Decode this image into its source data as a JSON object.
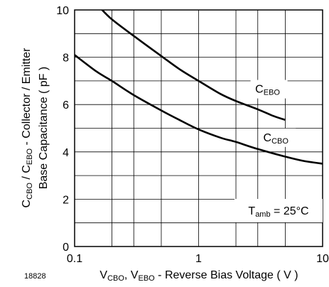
{
  "chart_data": {
    "type": "line",
    "title": "",
    "xscale": "log",
    "xlim": [
      0.1,
      10
    ],
    "ylim": [
      0,
      10
    ],
    "grid": true,
    "x_ticks": [
      {
        "value": 0.1,
        "label": "0.1"
      },
      {
        "value": 1,
        "label": "1"
      },
      {
        "value": 10,
        "label": "10"
      }
    ],
    "y_ticks": [
      {
        "value": 0,
        "label": "0"
      },
      {
        "value": 2,
        "label": "2"
      },
      {
        "value": 4,
        "label": "4"
      },
      {
        "value": 6,
        "label": "6"
      },
      {
        "value": 8,
        "label": "8"
      },
      {
        "value": 10,
        "label": "10"
      }
    ],
    "xlabel": {
      "parts": [
        {
          "text": "V",
          "sub": false
        },
        {
          "text": "CBO",
          "sub": true
        },
        {
          "text": ", V",
          "sub": false
        },
        {
          "text": "EBO",
          "sub": true
        },
        {
          "text": " - Reverse Bias Voltage ( V )",
          "sub": false
        }
      ]
    },
    "ylabel_line1": {
      "parts": [
        {
          "text": "C",
          "sub": false
        },
        {
          "text": "CBO",
          "sub": true
        },
        {
          "text": " / C",
          "sub": false
        },
        {
          "text": "EBO",
          "sub": true
        },
        {
          "text": " - Collector / Emitter",
          "sub": false
        }
      ]
    },
    "ylabel_line2": "Base Capacitance ( pF )",
    "series": [
      {
        "name": "C_EBO",
        "label_parts": [
          {
            "text": "C",
            "sub": false
          },
          {
            "text": "EBO",
            "sub": true
          }
        ],
        "label_at": {
          "x": 3.6,
          "y": 6.5
        },
        "x": [
          0.16,
          0.2,
          0.3,
          0.5,
          0.7,
          1,
          1.5,
          2,
          3,
          4,
          5
        ],
        "y": [
          10.1,
          9.6,
          8.9,
          8.05,
          7.5,
          7.0,
          6.45,
          6.15,
          5.8,
          5.52,
          5.35
        ]
      },
      {
        "name": "C_CBO",
        "label_parts": [
          {
            "text": "C",
            "sub": false
          },
          {
            "text": "CBO",
            "sub": true
          }
        ],
        "label_at": {
          "x": 4.2,
          "y": 4.45
        },
        "x": [
          0.1,
          0.15,
          0.2,
          0.3,
          0.5,
          0.7,
          1,
          1.5,
          2,
          3,
          5,
          7,
          10
        ],
        "y": [
          8.1,
          7.4,
          7.0,
          6.4,
          5.75,
          5.35,
          4.95,
          4.6,
          4.42,
          4.12,
          3.8,
          3.62,
          3.5
        ]
      }
    ],
    "annotation": {
      "parts": [
        {
          "text": "T",
          "sub": false
        },
        {
          "text": "amb",
          "sub": true
        },
        {
          "text": " = 25°C",
          "sub": false
        }
      ]
    },
    "figure_number": "18828"
  }
}
